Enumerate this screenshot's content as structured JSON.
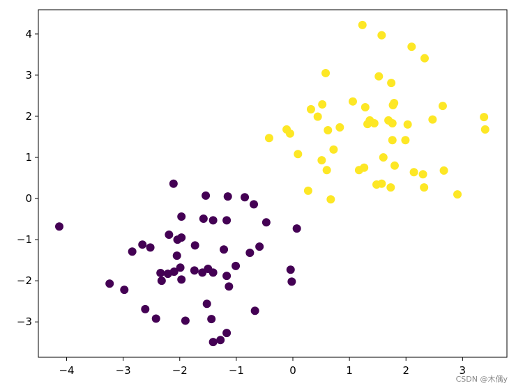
{
  "chart_data": {
    "type": "scatter",
    "xlim": [
      -4.5,
      3.785
    ],
    "ylim": [
      -3.86,
      4.59
    ],
    "xticks": [
      {
        "value": -4,
        "label": "−4"
      },
      {
        "value": -3,
        "label": "−3"
      },
      {
        "value": -2,
        "label": "−2"
      },
      {
        "value": -1,
        "label": "−1"
      },
      0,
      1,
      2,
      3
    ],
    "yticks": [
      {
        "value": -3,
        "label": "−3"
      },
      {
        "value": -2,
        "label": "−2"
      },
      {
        "value": -1,
        "label": "−1"
      },
      0,
      1,
      2,
      3,
      4
    ],
    "series": [
      {
        "color": "#440154",
        "x": [
          -4.13,
          -2.11,
          -1.54,
          -1.15,
          -0.85,
          -0.69,
          -1.97,
          -1.58,
          -1.41,
          -1.17,
          -0.47,
          0.07,
          -2.19,
          -1.97,
          -2.04,
          -2.66,
          -2.52,
          -1.73,
          -0.59,
          -2.84,
          -1.22,
          -0.76,
          -2.05,
          -1.01,
          -2.34,
          -2.21,
          -2.1,
          -1.99,
          -1.74,
          -1.6,
          -1.5,
          -1.41,
          -1.17,
          -0.04,
          -2.32,
          -1.97,
          -3.24,
          -2.98,
          -1.13,
          -0.02,
          -1.52,
          -0.67,
          -2.61,
          -2.42,
          -1.9,
          -1.44,
          -1.17,
          -1.28,
          -1.41
        ],
        "y": [
          -0.68,
          0.36,
          0.07,
          0.05,
          0.03,
          -0.14,
          -0.44,
          -0.49,
          -0.53,
          -0.53,
          -0.58,
          -0.73,
          -0.88,
          -0.95,
          -1.0,
          -1.12,
          -1.19,
          -1.14,
          -1.17,
          -1.29,
          -1.24,
          -1.32,
          -1.39,
          -1.64,
          -1.81,
          -1.83,
          -1.78,
          -1.68,
          -1.75,
          -1.8,
          -1.71,
          -1.8,
          -1.88,
          -1.73,
          -2.0,
          -1.97,
          -2.07,
          -2.22,
          -2.14,
          -2.02,
          -2.56,
          -2.73,
          -2.69,
          -2.92,
          -2.97,
          -2.93,
          -3.27,
          -3.44,
          -3.49
        ]
      },
      {
        "color": "#fde725",
        "x": [
          1.23,
          1.57,
          2.1,
          2.33,
          0.58,
          1.52,
          1.74,
          1.06,
          0.52,
          0.32,
          1.79,
          1.77,
          1.28,
          2.65,
          0.44,
          3.38,
          2.47,
          1.69,
          1.36,
          1.44,
          1.32,
          1.76,
          2.03,
          0.83,
          0.62,
          -0.11,
          -0.05,
          3.4,
          -0.42,
          1.76,
          1.99,
          0.72,
          0.09,
          1.6,
          0.51,
          1.8,
          1.26,
          1.17,
          0.6,
          2.14,
          2.3,
          2.67,
          1.48,
          1.57,
          1.73,
          2.32,
          0.27,
          2.91,
          0.67
        ],
        "y": [
          4.22,
          3.97,
          3.69,
          3.41,
          3.05,
          2.97,
          2.81,
          2.36,
          2.29,
          2.17,
          2.32,
          2.27,
          2.22,
          2.25,
          1.99,
          1.98,
          1.92,
          1.9,
          1.9,
          1.83,
          1.81,
          1.83,
          1.8,
          1.73,
          1.66,
          1.68,
          1.58,
          1.68,
          1.47,
          1.42,
          1.42,
          1.19,
          1.08,
          1.0,
          0.93,
          0.8,
          0.75,
          0.69,
          0.69,
          0.64,
          0.59,
          0.68,
          0.34,
          0.36,
          0.27,
          0.27,
          0.19,
          0.1,
          -0.02
        ]
      }
    ]
  },
  "watermark": "CSDN @木偶y"
}
